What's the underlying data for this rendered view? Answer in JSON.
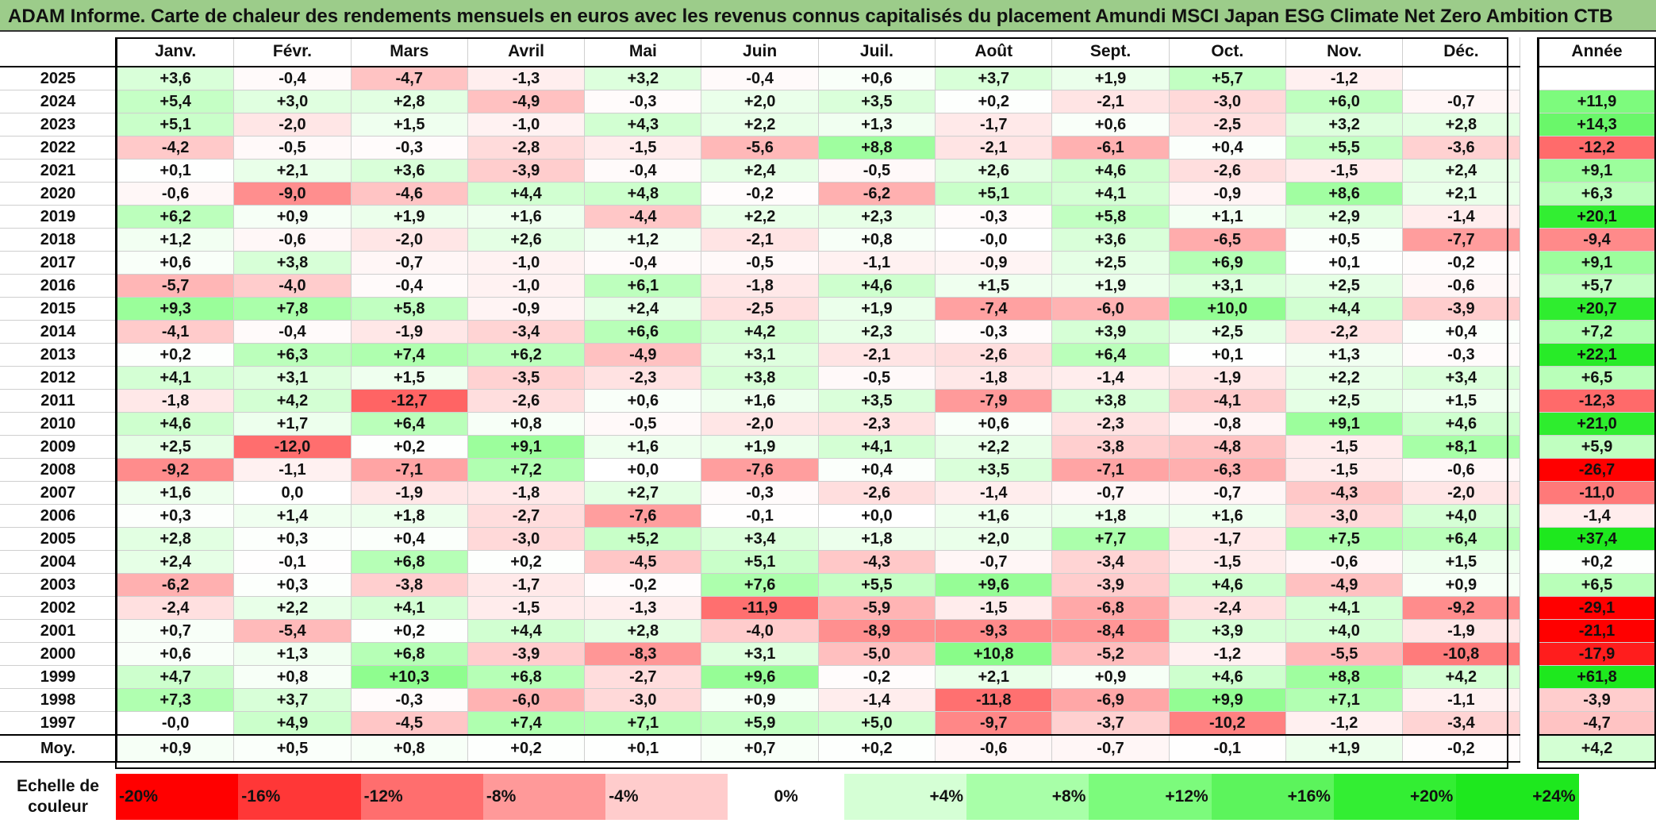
{
  "title": "ADAM Informe. Carte de chaleur des rendements mensuels en euros avec les revenus connus capitalisés du placement Amundi MSCI Japan ESG Climate Net Zero Ambition CTB",
  "chart_data": {
    "type": "heatmap",
    "title": "ADAM Informe. Carte de chaleur des rendements mensuels en euros avec les revenus connus capitalisés du placement Amundi MSCI Japan ESG Climate Net Zero Ambition CTB",
    "months": [
      "Janv.",
      "Févr.",
      "Mars",
      "Avril",
      "Mai",
      "Juin",
      "Juil.",
      "Août",
      "Sept.",
      "Oct.",
      "Nov.",
      "Déc."
    ],
    "year_header": "Année",
    "rows": [
      {
        "year": "2025",
        "values": [
          "+3,6",
          "-0,4",
          "-4,7",
          "-1,3",
          "+3,2",
          "-0,4",
          "+0,6",
          "+3,7",
          "+1,9",
          "+5,7",
          "-1,2",
          ""
        ],
        "annual": ""
      },
      {
        "year": "2024",
        "values": [
          "+5,4",
          "+3,0",
          "+2,8",
          "-4,9",
          "-0,3",
          "+2,0",
          "+3,5",
          "+0,2",
          "-2,1",
          "-3,0",
          "+6,0",
          "-0,7"
        ],
        "annual": "+11,9"
      },
      {
        "year": "2023",
        "values": [
          "+5,1",
          "-2,0",
          "+1,5",
          "-1,0",
          "+4,3",
          "+2,2",
          "+1,3",
          "-1,7",
          "+0,6",
          "-2,5",
          "+3,2",
          "+2,8"
        ],
        "annual": "+14,3"
      },
      {
        "year": "2022",
        "values": [
          "-4,2",
          "-0,5",
          "-0,3",
          "-2,8",
          "-1,5",
          "-5,6",
          "+8,8",
          "-2,1",
          "-6,1",
          "+0,4",
          "+5,5",
          "-3,6"
        ],
        "annual": "-12,2"
      },
      {
        "year": "2021",
        "values": [
          "+0,1",
          "+2,1",
          "+3,6",
          "-3,9",
          "-0,4",
          "+2,4",
          "-0,5",
          "+2,6",
          "+4,6",
          "-2,6",
          "-1,5",
          "+2,4"
        ],
        "annual": "+9,1"
      },
      {
        "year": "2020",
        "values": [
          "-0,6",
          "-9,0",
          "-4,6",
          "+4,4",
          "+4,8",
          "-0,2",
          "-6,2",
          "+5,1",
          "+4,1",
          "-0,9",
          "+8,6",
          "+2,1"
        ],
        "annual": "+6,3"
      },
      {
        "year": "2019",
        "values": [
          "+6,2",
          "+0,9",
          "+1,9",
          "+1,6",
          "-4,4",
          "+2,2",
          "+2,3",
          "-0,3",
          "+5,8",
          "+1,1",
          "+2,9",
          "-1,4"
        ],
        "annual": "+20,1"
      },
      {
        "year": "2018",
        "values": [
          "+1,2",
          "-0,6",
          "-2,0",
          "+2,6",
          "+1,2",
          "-2,1",
          "+0,8",
          "-0,0",
          "+3,6",
          "-6,5",
          "+0,5",
          "-7,7"
        ],
        "annual": "-9,4"
      },
      {
        "year": "2017",
        "values": [
          "+0,6",
          "+3,8",
          "-0,7",
          "-1,0",
          "-0,4",
          "-0,5",
          "-1,1",
          "-0,9",
          "+2,5",
          "+6,9",
          "+0,1",
          "-0,2"
        ],
        "annual": "+9,1"
      },
      {
        "year": "2016",
        "values": [
          "-5,7",
          "-4,0",
          "-0,4",
          "-1,0",
          "+6,1",
          "-1,8",
          "+4,6",
          "+1,5",
          "+1,9",
          "+3,1",
          "+2,5",
          "-0,6"
        ],
        "annual": "+5,7"
      },
      {
        "year": "2015",
        "values": [
          "+9,3",
          "+7,8",
          "+5,8",
          "-0,9",
          "+2,4",
          "-2,5",
          "+1,9",
          "-7,4",
          "-6,0",
          "+10,0",
          "+4,4",
          "-3,9"
        ],
        "annual": "+20,7"
      },
      {
        "year": "2014",
        "values": [
          "-4,1",
          "-0,4",
          "-1,9",
          "-3,4",
          "+6,6",
          "+4,2",
          "+2,3",
          "-0,3",
          "+3,9",
          "+2,5",
          "-2,2",
          "+0,4"
        ],
        "annual": "+7,2"
      },
      {
        "year": "2013",
        "values": [
          "+0,2",
          "+6,3",
          "+7,4",
          "+6,2",
          "-4,9",
          "+3,1",
          "-2,1",
          "-2,6",
          "+6,4",
          "+0,1",
          "+1,3",
          "-0,3"
        ],
        "annual": "+22,1"
      },
      {
        "year": "2012",
        "values": [
          "+4,1",
          "+3,1",
          "+1,5",
          "-3,5",
          "-2,3",
          "+3,8",
          "-0,5",
          "-1,8",
          "-1,4",
          "-1,9",
          "+2,2",
          "+3,4"
        ],
        "annual": "+6,5"
      },
      {
        "year": "2011",
        "values": [
          "-1,8",
          "+4,2",
          "-12,7",
          "-2,6",
          "+0,6",
          "+1,6",
          "+3,5",
          "-7,9",
          "+3,8",
          "-4,1",
          "+2,5",
          "+1,5"
        ],
        "annual": "-12,3"
      },
      {
        "year": "2010",
        "values": [
          "+4,6",
          "+1,7",
          "+6,4",
          "+0,8",
          "-0,5",
          "-2,0",
          "-2,3",
          "+0,6",
          "-2,3",
          "-0,8",
          "+9,1",
          "+4,6"
        ],
        "annual": "+21,0"
      },
      {
        "year": "2009",
        "values": [
          "+2,5",
          "-12,0",
          "+0,2",
          "+9,1",
          "+1,6",
          "+1,9",
          "+4,1",
          "+2,2",
          "-3,8",
          "-4,8",
          "-1,5",
          "+8,1"
        ],
        "annual": "+5,9"
      },
      {
        "year": "2008",
        "values": [
          "-9,2",
          "-1,1",
          "-7,1",
          "+7,2",
          "+0,0",
          "-7,6",
          "+0,4",
          "+3,5",
          "-7,1",
          "-6,3",
          "-1,5",
          "-0,6"
        ],
        "annual": "-26,7"
      },
      {
        "year": "2007",
        "values": [
          "+1,6",
          "0,0",
          "-1,9",
          "-1,8",
          "+2,7",
          "-0,3",
          "-2,6",
          "-1,4",
          "-0,7",
          "-0,7",
          "-4,3",
          "-2,0"
        ],
        "annual": "-11,0"
      },
      {
        "year": "2006",
        "values": [
          "+0,3",
          "+1,4",
          "+1,8",
          "-2,7",
          "-7,6",
          "-0,1",
          "+0,0",
          "+1,6",
          "+1,8",
          "+1,6",
          "-3,0",
          "+4,0"
        ],
        "annual": "-1,4"
      },
      {
        "year": "2005",
        "values": [
          "+2,8",
          "+0,3",
          "+0,4",
          "-3,0",
          "+5,2",
          "+3,4",
          "+1,8",
          "+2,0",
          "+7,7",
          "-1,7",
          "+7,5",
          "+6,4"
        ],
        "annual": "+37,4"
      },
      {
        "year": "2004",
        "values": [
          "+2,4",
          "-0,1",
          "+6,8",
          "+0,2",
          "-4,5",
          "+5,1",
          "-4,3",
          "-0,7",
          "-3,4",
          "-1,5",
          "-0,6",
          "+1,5"
        ],
        "annual": "+0,2"
      },
      {
        "year": "2003",
        "values": [
          "-6,2",
          "+0,3",
          "-3,8",
          "-1,7",
          "-0,2",
          "+7,6",
          "+5,5",
          "+9,6",
          "-3,9",
          "+4,6",
          "-4,9",
          "+0,9"
        ],
        "annual": "+6,5"
      },
      {
        "year": "2002",
        "values": [
          "-2,4",
          "+2,2",
          "+4,1",
          "-1,5",
          "-1,3",
          "-11,9",
          "-5,9",
          "-1,5",
          "-6,8",
          "-2,4",
          "+4,1",
          "-9,2"
        ],
        "annual": "-29,1"
      },
      {
        "year": "2001",
        "values": [
          "+0,7",
          "-5,4",
          "+0,2",
          "+4,4",
          "+2,8",
          "-4,0",
          "-8,9",
          "-9,3",
          "-8,4",
          "+3,9",
          "+4,0",
          "-1,9"
        ],
        "annual": "-21,1"
      },
      {
        "year": "2000",
        "values": [
          "+0,6",
          "+1,3",
          "+6,8",
          "-3,9",
          "-8,3",
          "+3,1",
          "-5,0",
          "+10,8",
          "-5,2",
          "-1,2",
          "-5,5",
          "-10,8"
        ],
        "annual": "-17,9"
      },
      {
        "year": "1999",
        "values": [
          "+4,7",
          "+0,8",
          "+10,3",
          "+6,8",
          "-2,7",
          "+9,6",
          "-0,2",
          "+2,1",
          "+0,9",
          "+4,6",
          "+8,8",
          "+4,2"
        ],
        "annual": "+61,8"
      },
      {
        "year": "1998",
        "values": [
          "+7,3",
          "+3,7",
          "-0,3",
          "-6,0",
          "-3,0",
          "+0,9",
          "-1,4",
          "-11,8",
          "-6,9",
          "+9,9",
          "+7,1",
          "-1,1"
        ],
        "annual": "-3,9"
      },
      {
        "year": "1997",
        "values": [
          "-0,0",
          "+4,9",
          "-4,5",
          "+7,4",
          "+7,1",
          "+5,9",
          "+5,0",
          "-9,7",
          "-3,7",
          "-10,2",
          "-1,2",
          "-3,4"
        ],
        "annual": "-4,7"
      }
    ],
    "average": {
      "label": "Moy.",
      "values": [
        "+0,9",
        "+0,5",
        "+0,8",
        "+0,2",
        "+0,1",
        "+0,7",
        "+0,2",
        "-0,6",
        "-0,7",
        "-0,1",
        "+1,9",
        "-0,2"
      ],
      "annual": "+4,2"
    },
    "color_scale": {
      "label": "Echelle de couleur",
      "stops": [
        {
          "label": "-20%",
          "value": -20,
          "color": "#ff0000"
        },
        {
          "label": "-16%",
          "value": -16,
          "color": "#ff3737"
        },
        {
          "label": "-12%",
          "value": -12,
          "color": "#ff6e6e"
        },
        {
          "label": "-8%",
          "value": -8,
          "color": "#ff9999"
        },
        {
          "label": "-4%",
          "value": -4,
          "color": "#ffcccc"
        },
        {
          "label": "0%",
          "value": 0,
          "color": "#ffffff"
        },
        {
          "label": "+4%",
          "value": 4,
          "color": "#d5ffd5"
        },
        {
          "label": "+8%",
          "value": 8,
          "color": "#a8ffa8"
        },
        {
          "label": "+12%",
          "value": 12,
          "color": "#7cfb7c"
        },
        {
          "label": "+16%",
          "value": 16,
          "color": "#5cf45c"
        },
        {
          "label": "+20%",
          "value": 20,
          "color": "#33ee33"
        },
        {
          "label": "+24%",
          "value": 24,
          "color": "#1ee81e"
        }
      ]
    }
  }
}
